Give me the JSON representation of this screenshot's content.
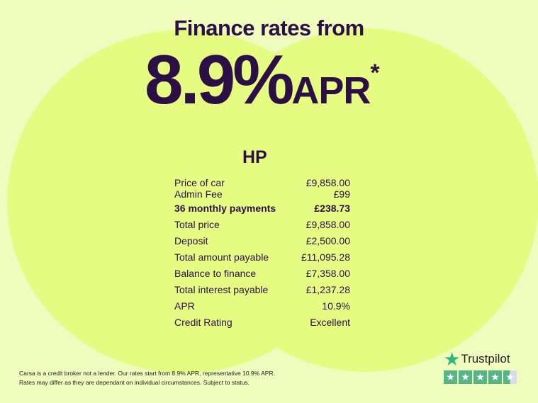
{
  "header": {
    "title": "Finance rates from",
    "rate": "8.9%",
    "apr": "APR",
    "asterisk": "*"
  },
  "section_title": "HP",
  "rows": [
    {
      "label": "Price of car",
      "value": "£9,858.00"
    },
    {
      "label": "Admin Fee",
      "value": "£99"
    },
    {
      "label": "36 monthly payments",
      "value": "£238.73",
      "bold": true
    },
    {
      "label": "Total price",
      "value": "£9,858.00"
    },
    {
      "label": "Deposit",
      "value": "£2,500.00"
    },
    {
      "label": "Total amount payable",
      "value": "£11,095.28"
    },
    {
      "label": "Balance to finance",
      "value": "£7,358.00"
    },
    {
      "label": "Total interest payable",
      "value": "£1,237.28"
    },
    {
      "label": "APR",
      "value": "10.9%"
    },
    {
      "label": "Credit Rating",
      "value": "Excellent"
    }
  ],
  "disclaimer": {
    "line1": "Carsa is a credit broker not a lender. Our rates start from 8.9% APR, representative 10.9% APR.",
    "line2": "Rates may differ as they are dependant on individual circumstances. Subject to status."
  },
  "trustpilot": {
    "name": "Trustpilot",
    "rating_stars": 4.5,
    "max_stars": 5,
    "icon": "star-icon"
  },
  "colors": {
    "text": "#2b0f45",
    "background": "#effcbd",
    "circles": "#e6fb82",
    "trustpilot_green": "#55b587"
  }
}
